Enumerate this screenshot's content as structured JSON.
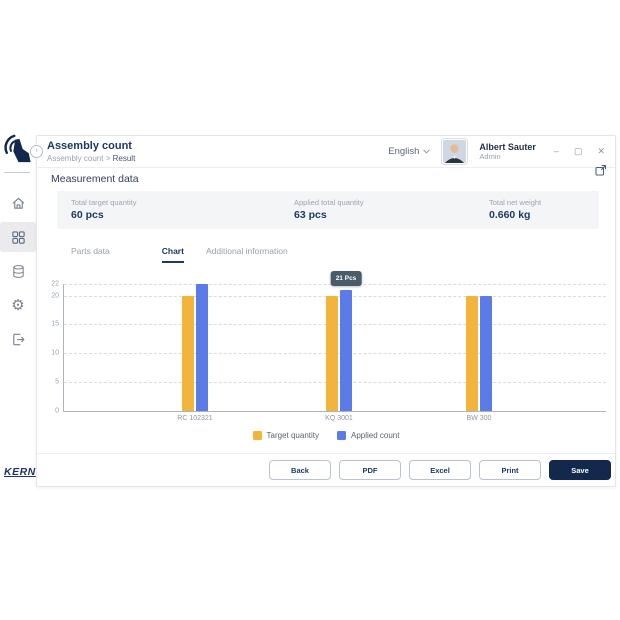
{
  "window": {
    "title": "Assembly count",
    "breadcrumb": {
      "parent": "Assembly count",
      "separator": ">",
      "current": "Result"
    },
    "language": "English",
    "user": {
      "name": "Albert Sauter",
      "role": "Admin"
    },
    "controls": {
      "minimize": "–",
      "maximize": "▢",
      "close": "✕"
    }
  },
  "sidebar": {
    "brand": "KERN",
    "items": [
      {
        "name": "home",
        "active": false
      },
      {
        "name": "apps",
        "active": true
      },
      {
        "name": "database",
        "active": false
      },
      {
        "name": "settings",
        "active": false
      },
      {
        "name": "logout",
        "active": false
      }
    ]
  },
  "panel": {
    "title": "Measurement data",
    "summary": [
      {
        "label": "Total target quantity",
        "value": "60 pcs"
      },
      {
        "label": "Applied total quantity",
        "value": "63 pcs"
      },
      {
        "label": "Total net weight",
        "value": "0.660 kg"
      }
    ],
    "tabs": [
      {
        "label": "Parts data",
        "active": false
      },
      {
        "label": "Chart",
        "active": true
      },
      {
        "label": "Additional information",
        "active": false
      }
    ]
  },
  "chart_data": {
    "type": "bar",
    "title": "",
    "categories": [
      "RC 102321",
      "KQ 3001",
      "BW 300"
    ],
    "series": [
      {
        "name": "Target quantity",
        "color": "#F2B43C",
        "values": [
          20,
          20,
          20
        ]
      },
      {
        "name": "Applied count",
        "color": "#5A7BE8",
        "values": [
          22,
          21,
          20
        ]
      }
    ],
    "yticks": [
      0,
      5,
      10,
      15,
      20,
      22
    ],
    "ylim": [
      0,
      22
    ],
    "grid": "horizontal-dashed",
    "legend_position": "bottom",
    "tooltip": {
      "text": "21 Pcs",
      "category": "KQ 3001",
      "series": "Applied count"
    }
  },
  "buttons": [
    "Back",
    "PDF",
    "Excel",
    "Print",
    "Save"
  ],
  "colors": {
    "navy": "#1d3a63",
    "primary_button": "#12294d",
    "target_bar": "#F2B43C",
    "applied_bar": "#5A7BE8",
    "tooltip_bg": "#4a5b6a",
    "summary_bg": "#f4f5f7"
  }
}
